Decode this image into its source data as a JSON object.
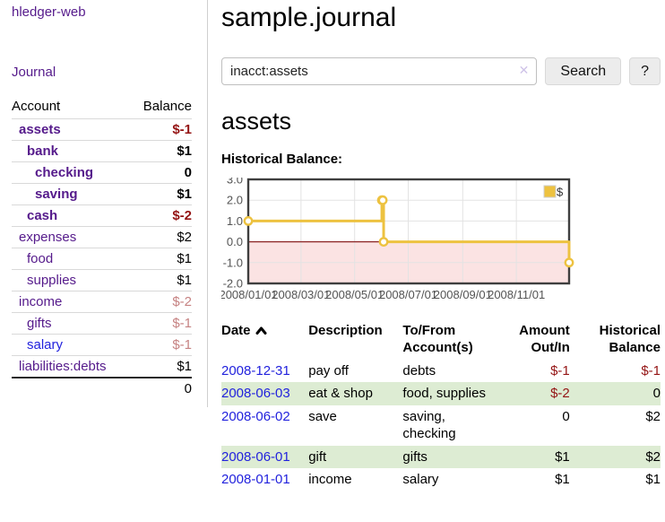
{
  "app": {
    "title": "hledger-web"
  },
  "sidebar": {
    "journal_link": "Journal",
    "accounts_table": {
      "headers": {
        "account": "Account",
        "balance": "Balance"
      },
      "rows": [
        {
          "name": "assets",
          "indent_class": "level-1",
          "link_class": "strong",
          "balance": "$-1",
          "balance_class": "neg strong"
        },
        {
          "name": "bank",
          "indent_class": "level-2",
          "link_class": "strong",
          "balance": "$1",
          "balance_class": "strong"
        },
        {
          "name": "checking",
          "indent_class": "level-3",
          "link_class": "strong",
          "balance": "0",
          "balance_class": "strong"
        },
        {
          "name": "saving",
          "indent_class": "level-3",
          "link_class": "strong",
          "balance": "$1",
          "balance_class": "strong"
        },
        {
          "name": "cash",
          "indent_class": "level-2",
          "link_class": "strong",
          "balance": "$-2",
          "balance_class": "neg strong"
        },
        {
          "name": "expenses",
          "indent_class": "level-1",
          "link_class": "",
          "balance": "$2",
          "balance_class": ""
        },
        {
          "name": "food",
          "indent_class": "level-2",
          "link_class": "",
          "balance": "$1",
          "balance_class": ""
        },
        {
          "name": "supplies",
          "indent_class": "level-2",
          "link_class": "",
          "balance": "$1",
          "balance_class": ""
        },
        {
          "name": "income",
          "indent_class": "level-1",
          "link_class": "",
          "balance": "$-2",
          "balance_class": "dimneg"
        },
        {
          "name": "gifts",
          "indent_class": "level-2",
          "link_class": "",
          "balance": "$-1",
          "balance_class": "dimneg"
        },
        {
          "name": "salary",
          "indent_class": "level-2",
          "link_class": "blue",
          "balance": "$-1",
          "balance_class": "dimneg"
        },
        {
          "name": "liabilities:debts",
          "indent_class": "level-1",
          "link_class": "",
          "balance": "$1",
          "balance_class": ""
        }
      ],
      "total": "0"
    }
  },
  "main": {
    "title": "sample.journal",
    "search": {
      "query": "inacct:assets",
      "clear_icon": "✕",
      "search_label": "Search",
      "help_label": "?"
    },
    "account_heading": "assets",
    "chart_label": "Historical Balance:",
    "register": {
      "headers": {
        "date": "Date",
        "sort": "asc",
        "description": "Description",
        "accounts": "To/From Account(s)",
        "amount": "Amount Out/In",
        "balance": "Historical Balance"
      },
      "rows": [
        {
          "date": "2008-12-31",
          "description": "pay off",
          "accounts": "debts",
          "amount": "$-1",
          "amount_class": "neg",
          "balance": "$-1",
          "balance_class": "neg"
        },
        {
          "date": "2008-06-03",
          "description": "eat & shop",
          "accounts": "food, supplies",
          "amount": "$-2",
          "amount_class": "neg",
          "balance": "0",
          "balance_class": ""
        },
        {
          "date": "2008-06-02",
          "description": "save",
          "accounts": "saving, checking",
          "amount": "0",
          "amount_class": "",
          "balance": "$2",
          "balance_class": ""
        },
        {
          "date": "2008-06-01",
          "description": "gift",
          "accounts": "gifts",
          "amount": "$1",
          "amount_class": "",
          "balance": "$2",
          "balance_class": ""
        },
        {
          "date": "2008-01-01",
          "description": "income",
          "accounts": "salary",
          "amount": "$1",
          "amount_class": "",
          "balance": "$1",
          "balance_class": ""
        }
      ]
    }
  },
  "chart_data": {
    "type": "line",
    "title": "Historical Balance",
    "step": true,
    "xrange": [
      "2008-01-01",
      "2008-12-31"
    ],
    "ylim": [
      -2,
      3
    ],
    "yticks": [
      3,
      2,
      1,
      0,
      -1,
      -2
    ],
    "xticks": [
      {
        "label": "2008/01/01",
        "date": "2008-01-01"
      },
      {
        "label": "2008/03/01",
        "date": "2008-03-01"
      },
      {
        "label": "2008/05/01",
        "date": "2008-05-01"
      },
      {
        "label": "2008/07/01",
        "date": "2008-07-01"
      },
      {
        "label": "2008/09/01",
        "date": "2008-09-01"
      },
      {
        "label": "2008/11/01",
        "date": "2008-11-01"
      }
    ],
    "series": [
      {
        "name": "$",
        "color": "#edc240",
        "points": [
          {
            "date": "2008-01-01",
            "value": 1
          },
          {
            "date": "2008-06-01",
            "value": 2
          },
          {
            "date": "2008-06-02",
            "value": 2
          },
          {
            "date": "2008-06-03",
            "value": 0
          },
          {
            "date": "2008-12-31",
            "value": -1
          }
        ]
      }
    ],
    "legend_position": "top-right",
    "grid": true,
    "grid_color": "#e3e3e3",
    "border_color": "#3f3f3f",
    "tick_color": "#545454",
    "zero_line_color": "#8f2a2a",
    "negative_fill": "#fbe3e3"
  },
  "colors": {
    "link_purple": "#551a8b",
    "link_blue": "#2222dd",
    "negative_strong": "#941414",
    "negative_muted": "#c68282",
    "row_stripe_green": "#ddecd3",
    "chart_line_gold": "#edc240"
  }
}
